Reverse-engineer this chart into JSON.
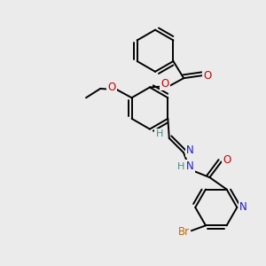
{
  "background_color": "#ebebeb",
  "fig_width": 3.0,
  "fig_height": 3.0,
  "dpi": 100,
  "atom_colors": {
    "C": "#000000",
    "H": "#4a8a8a",
    "N": "#1a1acc",
    "O": "#cc0000",
    "Br": "#cc6600"
  },
  "bond_color": "#000000",
  "bond_width": 1.4,
  "font_size_atom": 8.5
}
